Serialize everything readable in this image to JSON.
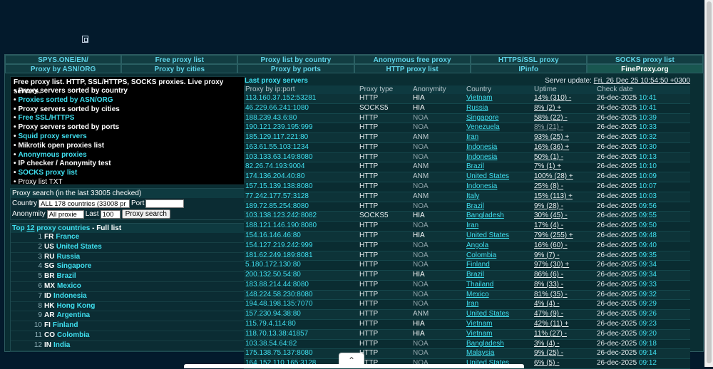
{
  "nav": {
    "row1": [
      "SPYS.ONE/EN/",
      "Free proxy list",
      "Proxy list by country",
      "Anonymous free proxy",
      "HTTPS/SSL proxy",
      "SOCKS proxy list"
    ],
    "row2": [
      "Proxy by ASN/ORG",
      "Proxy by cities",
      "Proxy by ports",
      "HTTP proxy list",
      "IPinfo",
      "FineProxy.org"
    ]
  },
  "menu": {
    "title": "Free proxy list. HTTP, SSL/HTTPS, SOCKS proxies. Live proxy servers.",
    "bullet": "•",
    "items": [
      {
        "label": "Proxy servers sorted by country",
        "style": "white"
      },
      {
        "label": "Proxies sorted by ASN/ORG",
        "style": "cyan"
      },
      {
        "label": "Proxy servers sorted by cities",
        "style": "white"
      },
      {
        "label": "Free SSL/HTTPS",
        "style": "cyan"
      },
      {
        "label": "Proxy servers sorted by ports",
        "style": "white"
      },
      {
        "label": "Squid proxy servers",
        "style": "cyan"
      },
      {
        "label": "Mikrotik open proxies list",
        "style": "white"
      },
      {
        "label": "Anonymous proxies",
        "style": "cyan"
      },
      {
        "label": "IP checker / Anonymity test",
        "style": "white"
      },
      {
        "label": "SOCKS proxy list",
        "style": "cyan"
      },
      {
        "label": "Proxy list TXT",
        "style": "plain"
      }
    ]
  },
  "search": {
    "title": "Proxy search (in the last 33005 checked)",
    "country_label": "Country",
    "country_value": "ALL 178 countries (33008 pr",
    "port_label": "Port",
    "port_value": "",
    "anonymity_label": "Anonymity",
    "anonymity_value": "All proxie",
    "last_label": "Last",
    "last_value": "100",
    "button": "Proxy search"
  },
  "top": {
    "prefix": "Top ",
    "count": "12",
    "middle": " proxy countries",
    "dash": " - ",
    "full_list": "Full list",
    "countries": [
      {
        "num": "1",
        "code": "FR",
        "name": "France"
      },
      {
        "num": "2",
        "code": "US",
        "name": "United States"
      },
      {
        "num": "3",
        "code": "RU",
        "name": "Russia"
      },
      {
        "num": "4",
        "code": "SG",
        "name": "Singapore"
      },
      {
        "num": "5",
        "code": "BR",
        "name": "Brazil"
      },
      {
        "num": "6",
        "code": "MX",
        "name": "Mexico"
      },
      {
        "num": "7",
        "code": "ID",
        "name": "Indonesia"
      },
      {
        "num": "8",
        "code": "HK",
        "name": "Hong Kong"
      },
      {
        "num": "9",
        "code": "AR",
        "name": "Argentina"
      },
      {
        "num": "10",
        "code": "FI",
        "name": "Finland"
      },
      {
        "num": "11",
        "code": "CO",
        "name": "Colombia"
      },
      {
        "num": "12",
        "code": "IN",
        "name": "India"
      }
    ]
  },
  "proxies": {
    "title": "Last proxy servers",
    "update_label": "Server update: ",
    "update_value": "Fri, 26 Dec 25 10:54:50 +0300",
    "columns": [
      "Proxy by ip:port",
      "Proxy type",
      "Anonymity",
      "Country",
      "Uptime",
      "Check date"
    ],
    "rows": [
      {
        "ip": "113.160.37.152:53281",
        "type": "HTTP",
        "anon": "HIA",
        "country": "Vietnam",
        "uptime": "14% (310) -",
        "date": "26-dec-2025",
        "time": "10:41"
      },
      {
        "ip": "46.229.66.241:1080",
        "type": "SOCKS5",
        "anon": "HIA",
        "country": "Russia",
        "uptime": "8% (2) +",
        "date": "26-dec-2025",
        "time": "10:41"
      },
      {
        "ip": "188.239.43.6:80",
        "type": "HTTP",
        "anon": "NOA",
        "country": "Singapore",
        "uptime": "58% (22) -",
        "date": "26-dec-2025",
        "time": "10:39"
      },
      {
        "ip": "190.121.239.195:999",
        "type": "HTTP",
        "anon": "NOA",
        "country": "Venezuela",
        "uptime": "8% (21) -",
        "date": "26-dec-2025",
        "time": "10:33",
        "faded": true
      },
      {
        "ip": "185.129.117.221:80",
        "type": "HTTP",
        "anon": "ANM",
        "country": "Iran",
        "uptime": "93% (25) +",
        "date": "26-dec-2025",
        "time": "10:32"
      },
      {
        "ip": "163.61.55.103:1234",
        "type": "HTTP",
        "anon": "NOA",
        "country": "Indonesia",
        "uptime": "16% (36) +",
        "date": "26-dec-2025",
        "time": "10:30"
      },
      {
        "ip": "103.133.63.149:8080",
        "type": "HTTP",
        "anon": "NOA",
        "country": "Indonesia",
        "uptime": "50% (1) -",
        "date": "26-dec-2025",
        "time": "10:13"
      },
      {
        "ip": "82.26.74.193:9004",
        "type": "HTTP",
        "anon": "ANM",
        "country": "Brazil",
        "uptime": "7% (1) +",
        "date": "26-dec-2025",
        "time": "10:10"
      },
      {
        "ip": "174.136.204.40:80",
        "type": "HTTP",
        "anon": "ANM",
        "country": "United States",
        "uptime": "100% (28) +",
        "date": "26-dec-2025",
        "time": "10:09"
      },
      {
        "ip": "157.15.139.138:8080",
        "type": "HTTP",
        "anon": "NOA",
        "country": "Indonesia",
        "uptime": "25% (8) -",
        "date": "26-dec-2025",
        "time": "10:07"
      },
      {
        "ip": "77.242.177.57:3128",
        "type": "HTTP",
        "anon": "ANM",
        "country": "Italy",
        "uptime": "15% (113) +",
        "date": "26-dec-2025",
        "time": "10:03"
      },
      {
        "ip": "189.72.85.254:8080",
        "type": "HTTP",
        "anon": "NOA",
        "country": "Brazil",
        "uptime": "9% (28) -",
        "date": "26-dec-2025",
        "time": "09:56"
      },
      {
        "ip": "103.138.123.242:8082",
        "type": "SOCKS5",
        "anon": "HIA",
        "country": "Bangladesh",
        "uptime": "30% (45) -",
        "date": "26-dec-2025",
        "time": "09:55"
      },
      {
        "ip": "188.121.146.190:8080",
        "type": "HTTP",
        "anon": "NOA",
        "country": "Iran",
        "uptime": "17% (4) -",
        "date": "26-dec-2025",
        "time": "09:50"
      },
      {
        "ip": "154.16.146.46:80",
        "type": "HTTP",
        "anon": "HIA",
        "country": "United States",
        "uptime": "79% (255) +",
        "date": "26-dec-2025",
        "time": "09:48"
      },
      {
        "ip": "154.127.219.242:999",
        "type": "HTTP",
        "anon": "NOA",
        "country": "Angola",
        "uptime": "16% (60) -",
        "date": "26-dec-2025",
        "time": "09:40"
      },
      {
        "ip": "181.62.249.189:8081",
        "type": "HTTP",
        "anon": "NOA",
        "country": "Colombia",
        "uptime": "9% (7) -",
        "date": "26-dec-2025",
        "time": "09:35"
      },
      {
        "ip": "5.180.172.130:80",
        "type": "HTTP",
        "anon": "NOA",
        "country": "Finland",
        "uptime": "97% (30) +",
        "date": "26-dec-2025",
        "time": "09:34"
      },
      {
        "ip": "200.132.50.54:80",
        "type": "HTTP",
        "anon": "HIA",
        "country": "Brazil",
        "uptime": "86% (6) -",
        "date": "26-dec-2025",
        "time": "09:34"
      },
      {
        "ip": "183.88.214.44:8080",
        "type": "HTTP",
        "anon": "NOA",
        "country": "Thailand",
        "uptime": "8% (33) -",
        "date": "26-dec-2025",
        "time": "09:33"
      },
      {
        "ip": "148.224.58.230:8080",
        "type": "HTTP",
        "anon": "NOA",
        "country": "Mexico",
        "uptime": "81% (35) -",
        "date": "26-dec-2025",
        "time": "09:32"
      },
      {
        "ip": "194.48.198.135:7070",
        "type": "HTTP",
        "anon": "NOA",
        "country": "Iran",
        "uptime": "4% (4) -",
        "date": "26-dec-2025",
        "time": "09:29"
      },
      {
        "ip": "157.230.94.38:80",
        "type": "HTTP",
        "anon": "ANM",
        "country": "United States",
        "uptime": "47% (9) -",
        "date": "26-dec-2025",
        "time": "09:26"
      },
      {
        "ip": "115.79.4.114:80",
        "type": "HTTP",
        "anon": "HIA",
        "country": "Vietnam",
        "uptime": "42% (11) +",
        "date": "26-dec-2025",
        "time": "09:23"
      },
      {
        "ip": "118.70.13.38:41857",
        "type": "HTTP",
        "anon": "HIA",
        "country": "Vietnam",
        "uptime": "11% (27) -",
        "date": "26-dec-2025",
        "time": "09:20"
      },
      {
        "ip": "103.38.54.64:82",
        "type": "HTTP",
        "anon": "NOA",
        "country": "Bangladesh",
        "uptime": "3% (4) -",
        "date": "26-dec-2025",
        "time": "09:18"
      },
      {
        "ip": "175.138.75.137:8080",
        "type": "HTTP",
        "anon": "NOA",
        "country": "Malaysia",
        "uptime": "9% (25) -",
        "date": "26-dec-2025",
        "time": "09:14"
      },
      {
        "ip": "164.152.110.165:3128",
        "type": "HTTP",
        "anon": "NOA",
        "country": "United States",
        "uptime": "6% (5) -",
        "date": "26-dec-2025",
        "time": "09:12"
      }
    ]
  },
  "collapse_icon": "chevron-up-icon",
  "collapse_glyph": "⌃"
}
